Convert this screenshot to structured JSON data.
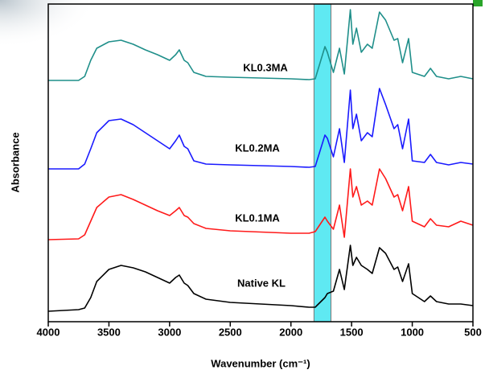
{
  "chart_data": {
    "type": "line",
    "x_label": "Wavenumber (cm⁻¹)",
    "y_label": "Absorbance",
    "xlim": [
      4000,
      500
    ],
    "xticks": [
      4000,
      3500,
      3000,
      2500,
      2000,
      1500,
      1000,
      500
    ],
    "ylim": [
      0,
      395
    ],
    "highlight_range": [
      1810,
      1670
    ],
    "highlight_color": "#5fe9f2",
    "x": [
      4000,
      3750,
      3700,
      3650,
      3600,
      3500,
      3400,
      3300,
      3200,
      3100,
      3000,
      2950,
      2920,
      2880,
      2850,
      2800,
      2700,
      2500,
      2000,
      1850,
      1800,
      1720,
      1700,
      1650,
      1600,
      1560,
      1510,
      1490,
      1460,
      1420,
      1370,
      1330,
      1270,
      1220,
      1150,
      1120,
      1080,
      1030,
      1000,
      900,
      850,
      800,
      700,
      600,
      500
    ],
    "series": [
      {
        "name": "Native KL",
        "color": "#000000",
        "values": [
          13,
          15,
          17,
          30,
          50,
          65,
          70,
          67,
          62,
          55,
          48,
          55,
          58,
          48,
          45,
          35,
          28,
          24,
          20,
          18,
          18,
          30,
          35,
          38,
          65,
          40,
          95,
          70,
          80,
          70,
          65,
          60,
          92,
          85,
          65,
          68,
          50,
          72,
          35,
          25,
          32,
          25,
          22,
          22,
          20
        ]
      },
      {
        "name": "KL0.1MA",
        "color": "#ff1a1a",
        "values": [
          102,
          103,
          108,
          125,
          142,
          155,
          158,
          152,
          145,
          138,
          132,
          138,
          142,
          132,
          130,
          122,
          116,
          113,
          110,
          110,
          112,
          130,
          125,
          115,
          145,
          105,
          190,
          155,
          168,
          145,
          150,
          145,
          190,
          178,
          155,
          158,
          138,
          168,
          125,
          118,
          128,
          120,
          118,
          125,
          120
        ]
      },
      {
        "name": "KL0.2MA",
        "color": "#1a1aff",
        "values": [
          190,
          190,
          196,
          215,
          235,
          250,
          252,
          245,
          235,
          225,
          215,
          225,
          232,
          218,
          215,
          200,
          196,
          195,
          193,
          192,
          193,
          232,
          228,
          205,
          240,
          198,
          288,
          240,
          258,
          225,
          235,
          230,
          290,
          270,
          240,
          245,
          215,
          252,
          200,
          198,
          208,
          198,
          195,
          198,
          196
        ]
      },
      {
        "name": "KL0.3MA",
        "color": "#1f8f8a",
        "values": [
          300,
          300,
          305,
          325,
          340,
          348,
          350,
          345,
          338,
          332,
          325,
          332,
          338,
          325,
          322,
          310,
          305,
          304,
          302,
          301,
          302,
          342,
          335,
          310,
          340,
          308,
          388,
          345,
          365,
          335,
          345,
          340,
          385,
          375,
          350,
          352,
          322,
          352,
          310,
          305,
          315,
          305,
          302,
          305,
          302
        ]
      }
    ]
  }
}
